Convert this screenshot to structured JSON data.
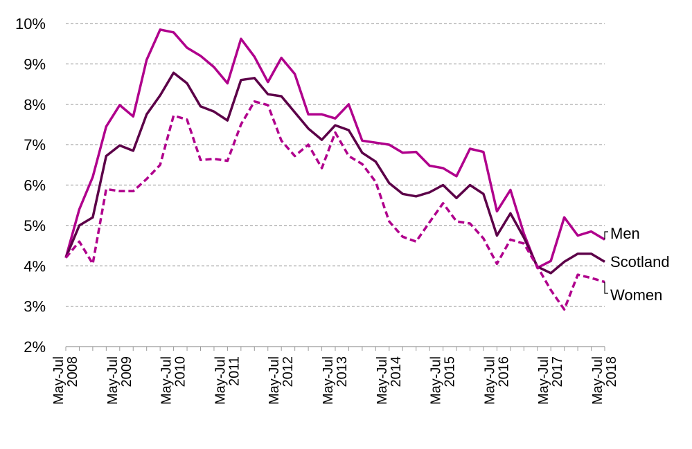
{
  "chart_data": {
    "type": "line",
    "y_ticks": [
      "2%",
      "3%",
      "4%",
      "5%",
      "6%",
      "7%",
      "8%",
      "9%",
      "10%"
    ],
    "ylim": [
      2,
      10
    ],
    "x_tick_labels": [
      {
        "period": "May-Jul",
        "year": "2008"
      },
      {
        "period": "May-Jul",
        "year": "2009"
      },
      {
        "period": "May-Jul",
        "year": "2010"
      },
      {
        "period": "May-Jul",
        "year": "2011"
      },
      {
        "period": "May-Jul",
        "year": "2012"
      },
      {
        "period": "May-Jul",
        "year": "2013"
      },
      {
        "period": "May-Jul",
        "year": "2014"
      },
      {
        "period": "May-Jul",
        "year": "2015"
      },
      {
        "period": "May-Jul",
        "year": "2016"
      },
      {
        "period": "May-Jul",
        "year": "2017"
      },
      {
        "period": "May-Jul",
        "year": "2018"
      }
    ],
    "periods_per_tick": 4,
    "grid": true,
    "series": [
      {
        "name": "Men",
        "color": "#b0008c",
        "dash": "solid",
        "values": [
          4.2,
          5.4,
          6.2,
          7.45,
          7.98,
          7.7,
          9.1,
          9.85,
          9.78,
          9.4,
          9.2,
          8.92,
          8.52,
          9.62,
          9.18,
          8.55,
          9.15,
          8.75,
          7.75,
          7.75,
          7.65,
          8.0,
          7.1,
          7.05,
          7.0,
          6.8,
          6.82,
          6.48,
          6.42,
          6.22,
          6.9,
          6.82,
          5.35,
          5.88,
          4.8,
          3.95,
          4.12,
          5.2,
          4.75,
          4.85,
          4.65
        ]
      },
      {
        "name": "Scotland",
        "color": "#5c0048",
        "dash": "solid",
        "values": [
          4.2,
          5.0,
          5.2,
          6.72,
          6.98,
          6.85,
          7.75,
          8.22,
          8.78,
          8.52,
          7.95,
          7.82,
          7.6,
          8.6,
          8.65,
          8.25,
          8.2,
          7.8,
          7.4,
          7.12,
          7.48,
          7.36,
          6.8,
          6.58,
          6.05,
          5.78,
          5.72,
          5.82,
          6.0,
          5.68,
          6.0,
          5.78,
          4.75,
          5.3,
          4.7,
          3.98,
          3.82,
          4.1,
          4.3,
          4.3,
          4.1
        ]
      },
      {
        "name": "Women",
        "color": "#b0008c",
        "dash": "dashed",
        "values": [
          4.2,
          4.6,
          4.05,
          5.9,
          5.85,
          5.85,
          6.15,
          6.5,
          7.72,
          7.62,
          6.62,
          6.65,
          6.6,
          7.5,
          8.07,
          7.98,
          7.1,
          6.72,
          7.0,
          6.42,
          7.3,
          6.72,
          6.52,
          6.08,
          5.1,
          4.72,
          4.6,
          5.08,
          5.55,
          5.1,
          5.05,
          4.68,
          4.05,
          4.65,
          4.55,
          3.98,
          3.4,
          2.92,
          3.78,
          3.7,
          3.6
        ]
      }
    ]
  }
}
